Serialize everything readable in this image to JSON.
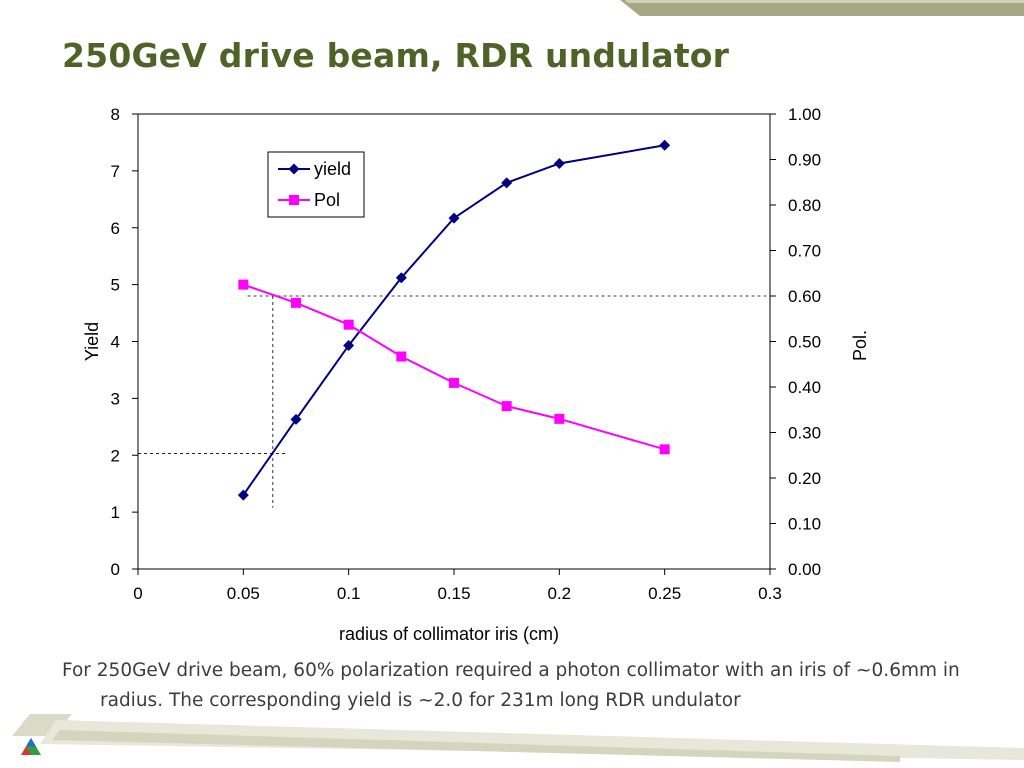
{
  "slide": {
    "title": "250GeV drive beam, RDR undulator",
    "caption": "For 250GeV drive beam, 60% polarization required a photon collimator with an iris of ~0.6mm in radius.  The corresponding yield is ~2.0 for 231m long RDR undulator"
  },
  "colors": {
    "title": "#4f6228",
    "band": "#a5a882",
    "yield_series": "#000080",
    "pol_series": "#ff00ff"
  },
  "chart_data": {
    "type": "line",
    "xlabel": "radius of collimator iris (cm)",
    "ylabel": "Yield",
    "y2label": "Pol.",
    "xlim": [
      0,
      0.3
    ],
    "ylim": [
      0,
      8
    ],
    "y2lim": [
      0,
      1.0
    ],
    "x_ticks": [
      "0",
      "0.05",
      "0.1",
      "0.15",
      "0.2",
      "0.25",
      "0.3"
    ],
    "y_ticks": [
      "0",
      "1",
      "2",
      "3",
      "4",
      "5",
      "6",
      "7",
      "8"
    ],
    "y2_ticks": [
      "0.00",
      "0.10",
      "0.20",
      "0.30",
      "0.40",
      "0.50",
      "0.60",
      "0.70",
      "0.80",
      "0.90",
      "1.00"
    ],
    "legend_position": "top-left",
    "grid": false,
    "series": [
      {
        "name": "yield",
        "axis": "left",
        "marker": "diamond",
        "x": [
          0.05,
          0.075,
          0.1,
          0.125,
          0.15,
          0.175,
          0.2,
          0.25
        ],
        "values": [
          1.3,
          2.63,
          3.93,
          5.12,
          6.17,
          6.79,
          7.13,
          7.45
        ]
      },
      {
        "name": "Pol",
        "axis": "right",
        "marker": "square",
        "x": [
          0.05,
          0.075,
          0.1,
          0.125,
          0.15,
          0.175,
          0.2,
          0.25
        ],
        "values": [
          0.625,
          0.585,
          0.537,
          0.467,
          0.409,
          0.358,
          0.33,
          0.263
        ]
      }
    ],
    "annotations": {
      "pol_target": 0.6,
      "yield_at_target": 2.03,
      "radius_at_target": 0.064
    }
  }
}
